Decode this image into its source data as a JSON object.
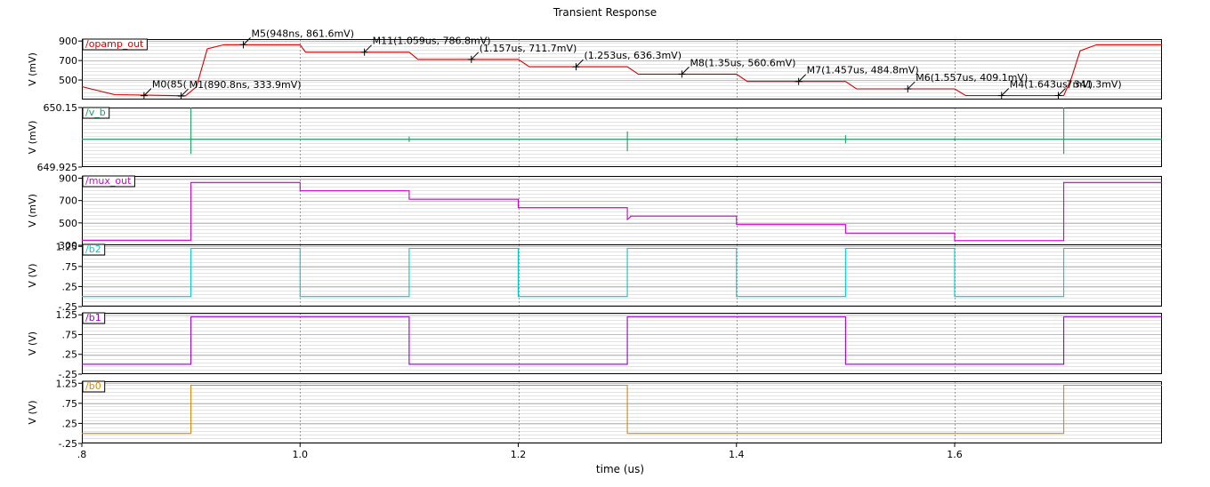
{
  "title": "Transient Response",
  "chart_data": {
    "type": "line",
    "title": "Transient Response",
    "xlabel": "time (us)",
    "xlim": [
      0.8,
      1.79
    ],
    "xticks": [
      ".8",
      "1.0",
      "1.2",
      "1.4",
      "1.6"
    ],
    "xtick_values": [
      0.8,
      1.0,
      1.2,
      1.4,
      1.6
    ],
    "grid": true,
    "panels": [
      {
        "name": "/opamp_out",
        "ylabel": "V (mV)",
        "ylim": [
          300,
          920
        ],
        "ytick_labels": [
          "900",
          "700",
          "500"
        ],
        "ytick_values": [
          900,
          700,
          500
        ],
        "color": "#d40000",
        "x": [
          0.8,
          0.83,
          0.86,
          0.895,
          0.905,
          0.915,
          0.93,
          1.0,
          1.005,
          1.1,
          1.108,
          1.2,
          1.21,
          1.3,
          1.31,
          1.4,
          1.41,
          1.5,
          1.51,
          1.6,
          1.61,
          1.7,
          1.707,
          1.715,
          1.73,
          1.79
        ],
        "y": [
          432,
          350,
          345,
          338,
          430,
          820,
          862,
          862,
          786,
          786,
          712,
          712,
          636,
          636,
          561,
          561,
          485,
          485,
          409,
          409,
          341,
          341,
          520,
          800,
          862,
          862
        ],
        "markers": [
          {
            "label": "M0(85(",
            "x": 0.857,
            "y": 340
          },
          {
            "label": "M1(890.8ns, 333.9mV)",
            "x": 0.891,
            "y": 336
          },
          {
            "label": "M5(948ns, 861.6mV)",
            "x": 0.948,
            "y": 862
          },
          {
            "label": "M11(1.059us, 786.8mV)",
            "x": 1.059,
            "y": 786
          },
          {
            "label": "(1.157us, 711.7mV)",
            "x": 1.157,
            "y": 712
          },
          {
            "label": "(1.253us, 636.3mV)",
            "x": 1.253,
            "y": 636
          },
          {
            "label": "M8(1.35us, 560.6mV)",
            "x": 1.35,
            "y": 561
          },
          {
            "label": "M7(1.457us, 484.8mV)",
            "x": 1.457,
            "y": 485
          },
          {
            "label": "M6(1.557us, 409.1mV)",
            "x": 1.557,
            "y": 409
          },
          {
            "label": "M4(1.643us, 341.3mV)",
            "x": 1.643,
            "y": 341
          },
          {
            "label": "7mV)",
            "x": 1.695,
            "y": 341
          }
        ]
      },
      {
        "name": "/v_b",
        "ylabel": "V (mV)",
        "ylim": [
          649.925,
          650.15
        ],
        "ytick_labels": [
          "650.15",
          "649.925"
        ],
        "ytick_values": [
          650.15,
          649.925
        ],
        "color": "#1aa060",
        "baseline": 650.03,
        "spikes": [
          {
            "x": 0.9,
            "y1": 650.15,
            "y2": 649.975
          },
          {
            "x": 1.1,
            "y1": 650.04,
            "y2": 650.02
          },
          {
            "x": 1.3,
            "y1": 650.06,
            "y2": 649.985
          },
          {
            "x": 1.4,
            "y1": 650.035,
            "y2": 650.025
          },
          {
            "x": 1.5,
            "y1": 650.045,
            "y2": 650.015
          },
          {
            "x": 1.6,
            "y1": 650.035,
            "y2": 650.025
          },
          {
            "x": 1.7,
            "y1": 650.15,
            "y2": 649.975
          }
        ]
      },
      {
        "name": "/mux_out",
        "ylabel": "V (mV)",
        "ylim": [
          300,
          920
        ],
        "ytick_labels": [
          "900",
          "700",
          "500",
          "300"
        ],
        "ytick_values": [
          900,
          700,
          500,
          300
        ],
        "color": "#cc00cc",
        "x": [
          0.8,
          0.9,
          0.9,
          1.0,
          1.0,
          1.1,
          1.1,
          1.2,
          1.2,
          1.3,
          1.3,
          1.303,
          1.303,
          1.4,
          1.4,
          1.5,
          1.5,
          1.6,
          1.6,
          1.7,
          1.7,
          1.79
        ],
        "y": [
          345,
          345,
          862,
          862,
          787,
          787,
          712,
          712,
          636,
          636,
          530,
          555,
          561,
          561,
          485,
          485,
          409,
          409,
          341,
          341,
          862,
          862
        ]
      },
      {
        "name": "/b2",
        "ylabel": "V (V)",
        "ylim": [
          -0.25,
          1.3
        ],
        "ytick_labels": [
          "1.25",
          ".75",
          ".25",
          "-.25"
        ],
        "ytick_values": [
          1.25,
          0.75,
          0.25,
          -0.25
        ],
        "color": "#00cccc",
        "x": [
          0.8,
          0.9,
          0.9,
          1.0,
          1.0,
          1.1,
          1.1,
          1.2,
          1.2,
          1.3,
          1.3,
          1.4,
          1.4,
          1.5,
          1.5,
          1.6,
          1.6,
          1.7,
          1.7,
          1.79
        ],
        "y": [
          0,
          0,
          1.2,
          1.2,
          0,
          0,
          1.2,
          1.2,
          0,
          0,
          1.2,
          1.2,
          0,
          0,
          1.2,
          1.2,
          0,
          0,
          1.2,
          1.2
        ]
      },
      {
        "name": "/b1",
        "ylabel": "V (V)",
        "ylim": [
          -0.25,
          1.3
        ],
        "ytick_labels": [
          "1.25",
          ".75",
          ".25",
          "-.25"
        ],
        "ytick_values": [
          1.25,
          0.75,
          0.25,
          -0.25
        ],
        "color": "#9900cc",
        "x": [
          0.8,
          0.9,
          0.9,
          1.1,
          1.1,
          1.3,
          1.3,
          1.5,
          1.5,
          1.7,
          1.7,
          1.79
        ],
        "y": [
          0,
          0,
          1.2,
          1.2,
          0,
          0,
          1.2,
          1.2,
          0,
          0,
          1.2,
          1.2
        ]
      },
      {
        "name": "/b0",
        "ylabel": "V (V)",
        "ylim": [
          -0.25,
          1.3
        ],
        "ytick_labels": [
          "1.25",
          ".75",
          ".25",
          "-.25"
        ],
        "ytick_values": [
          1.25,
          0.75,
          0.25,
          -0.25
        ],
        "color": "#dd8800",
        "x": [
          0.8,
          0.9,
          0.9,
          1.3,
          1.3,
          1.7,
          1.7,
          1.79
        ],
        "y": [
          0,
          0,
          1.2,
          1.2,
          0,
          0,
          1.2,
          1.2
        ]
      }
    ]
  }
}
